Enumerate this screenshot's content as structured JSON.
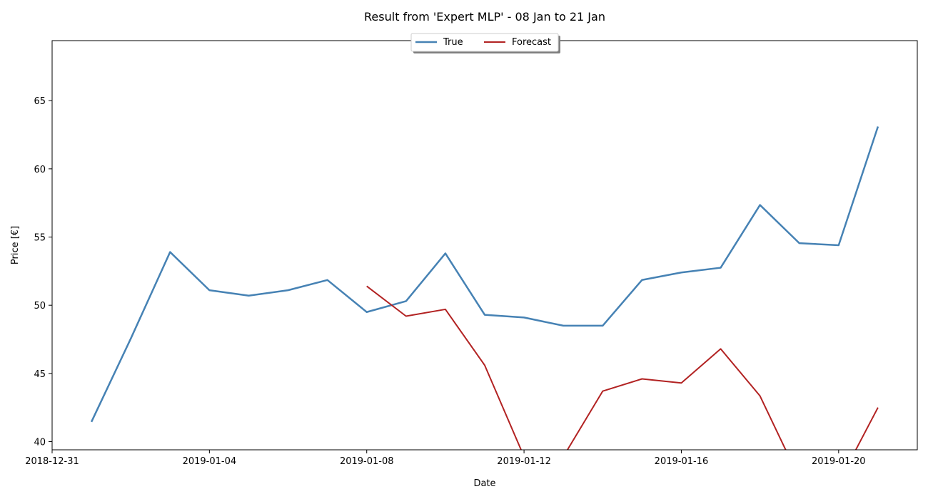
{
  "chart_data": {
    "type": "line",
    "title": "Result from 'Expert MLP' - 08 Jan to 21 Jan",
    "xlabel": "Date",
    "ylabel": "Price [€]",
    "x_ticks": [
      "2018-12-31",
      "2019-01-04",
      "2019-01-08",
      "2019-01-12",
      "2019-01-16",
      "2019-01-20"
    ],
    "y_ticks": [
      40,
      45,
      50,
      55,
      60,
      65
    ],
    "xlim": [
      "2018-12-31",
      "2019-01-22"
    ],
    "ylim": [
      39.4,
      69.4
    ],
    "grid": false,
    "legend_position": "top-center",
    "series": [
      {
        "name": "True",
        "color": "#4682b4",
        "x": [
          "2019-01-01",
          "2019-01-02",
          "2019-01-03",
          "2019-01-04",
          "2019-01-05",
          "2019-01-06",
          "2019-01-07",
          "2019-01-08",
          "2019-01-09",
          "2019-01-10",
          "2019-01-11",
          "2019-01-12",
          "2019-01-13",
          "2019-01-14",
          "2019-01-15",
          "2019-01-16",
          "2019-01-17",
          "2019-01-18",
          "2019-01-19",
          "2019-01-20",
          "2019-01-21"
        ],
        "values": [
          41.45,
          47.55,
          53.9,
          51.1,
          50.7,
          51.1,
          51.85,
          49.5,
          50.3,
          53.8,
          49.3,
          49.1,
          48.5,
          48.5,
          51.85,
          52.4,
          52.75,
          57.35,
          54.55,
          54.4,
          63.1
        ]
      },
      {
        "name": "Forecast",
        "color": "#b22222",
        "x": [
          "2019-01-08",
          "2019-01-09",
          "2019-01-10",
          "2019-01-11",
          "2019-01-12",
          "2019-01-13",
          "2019-01-14",
          "2019-01-15",
          "2019-01-16",
          "2019-01-17",
          "2019-01-18",
          "2019-01-19",
          "2019-01-20",
          "2019-01-21"
        ],
        "values": [
          51.4,
          49.2,
          49.7,
          45.6,
          38.9,
          38.9,
          43.7,
          44.6,
          44.3,
          46.8,
          43.35,
          37.3,
          37.0,
          42.5
        ]
      }
    ]
  }
}
